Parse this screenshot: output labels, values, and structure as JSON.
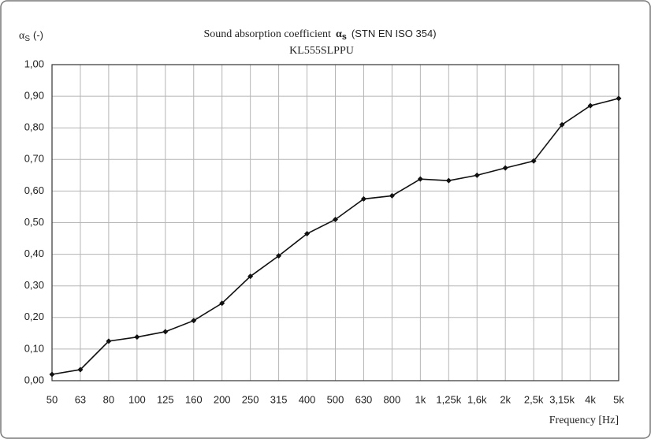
{
  "chart_data": {
    "type": "line",
    "title": "Sound absorption coefficient",
    "title_symbol": "α",
    "title_symbol_subscript": "s",
    "title_standard": "(STN EN ISO 354)",
    "subtitle": "KL555SLPPU",
    "y_label_symbol": "α",
    "y_label_subscript": "S",
    "y_label_unit": "(-)",
    "x_label": "Frequency [Hz]",
    "categories": [
      "50",
      "63",
      "80",
      "100",
      "125",
      "160",
      "200",
      "250",
      "315",
      "400",
      "500",
      "630",
      "800",
      "1k",
      "1,25k",
      "1,6k",
      "2k",
      "2,5k",
      "3,15k",
      "4k",
      "5k"
    ],
    "series": [
      {
        "color": "#111111",
        "values": [
          0.02,
          0.035,
          0.125,
          0.138,
          0.155,
          0.19,
          0.245,
          0.33,
          0.395,
          0.465,
          0.51,
          0.575,
          0.585,
          0.638,
          0.633,
          0.65,
          0.673,
          0.695,
          0.81,
          0.87,
          0.893
        ]
      }
    ],
    "ylim": [
      0,
      1
    ],
    "yticks": [
      {
        "value": 0,
        "label": "0,00"
      },
      {
        "value": 0.1,
        "label": "0,10"
      },
      {
        "value": 0.2,
        "label": "0,20"
      },
      {
        "value": 0.3,
        "label": "0,30"
      },
      {
        "value": 0.4,
        "label": "0,40"
      },
      {
        "value": 0.5,
        "label": "0,50"
      },
      {
        "value": 0.6,
        "label": "0,60"
      },
      {
        "value": 0.7,
        "label": "0,70"
      },
      {
        "value": 0.8,
        "label": "0,80"
      },
      {
        "value": 0.9,
        "label": "0,90"
      },
      {
        "value": 1,
        "label": "1,00"
      }
    ],
    "grid": true
  }
}
